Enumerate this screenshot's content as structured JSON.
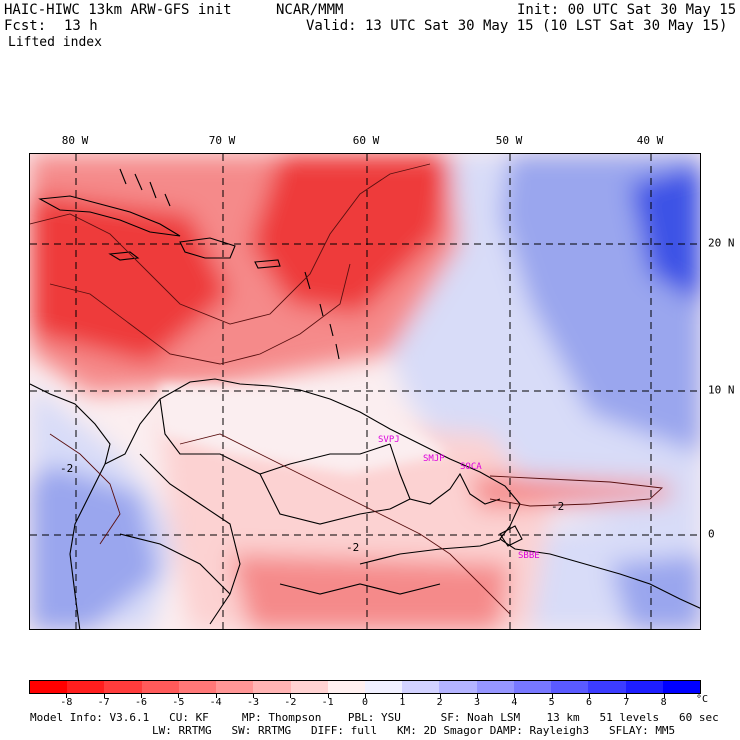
{
  "header": {
    "model_title": "HAIC-HIWC 13km ARW-GFS init",
    "org": "NCAR/MMM",
    "init": "Init: 00 UTC Sat 30 May 15",
    "fcst_label": "Fcst:",
    "fcst_value": "13 h",
    "valid": "Valid: 13 UTC Sat 30 May 15 (10 LST Sat 30 May 15)",
    "field": "Lifted index"
  },
  "map": {
    "lon_labels": [
      "80 W",
      "70 W",
      "60 W",
      "50 W",
      "40 W"
    ],
    "lat_labels": [
      "20 N",
      "10 N",
      "0"
    ],
    "stations": [
      "SVPJ",
      "SMJP",
      "SOCA",
      "SBBE"
    ],
    "contour_labels": [
      "-2",
      "-2",
      "-2"
    ],
    "colors": {
      "strong_neg": "#ee3a3a",
      "mid_neg": "#f58a8a",
      "weak_neg": "#fcd2d2",
      "neutral": "#fbeef0",
      "weak_pos": "#d8dcf8",
      "mid_pos": "#9aa6ee",
      "strong_pos": "#3c52e6",
      "coast": "#000000",
      "station_label": "#dd00dd"
    }
  },
  "colorbar": {
    "labels": [
      "-8",
      "-7",
      "-6",
      "-5",
      "-4",
      "-3",
      "-2",
      "-1",
      "0",
      "1",
      "2",
      "3",
      "4",
      "5",
      "6",
      "7",
      "8"
    ],
    "unit": "°C",
    "colors": [
      "#ff0000",
      "#ff1e1e",
      "#ff3c3c",
      "#ff5a5a",
      "#ff7878",
      "#ff9696",
      "#ffb4b4",
      "#ffd2d2",
      "#fff0f0",
      "#f0f0ff",
      "#d2d2ff",
      "#b4b4ff",
      "#9696ff",
      "#7878ff",
      "#5a5aff",
      "#3c3cff",
      "#1e1eff",
      "#0000ff"
    ]
  },
  "footer": {
    "line1": "Model Info: V3.6.1   CU: KF     MP: Thompson    PBL: YSU      SF: Noah LSM    13 km   51 levels   60 sec",
    "line2": "LW: RRTMG   SW: RRTMG   DIFF: full   KM: 2D Smagor DAMP: Rayleigh3   SFLAY: MM5"
  }
}
